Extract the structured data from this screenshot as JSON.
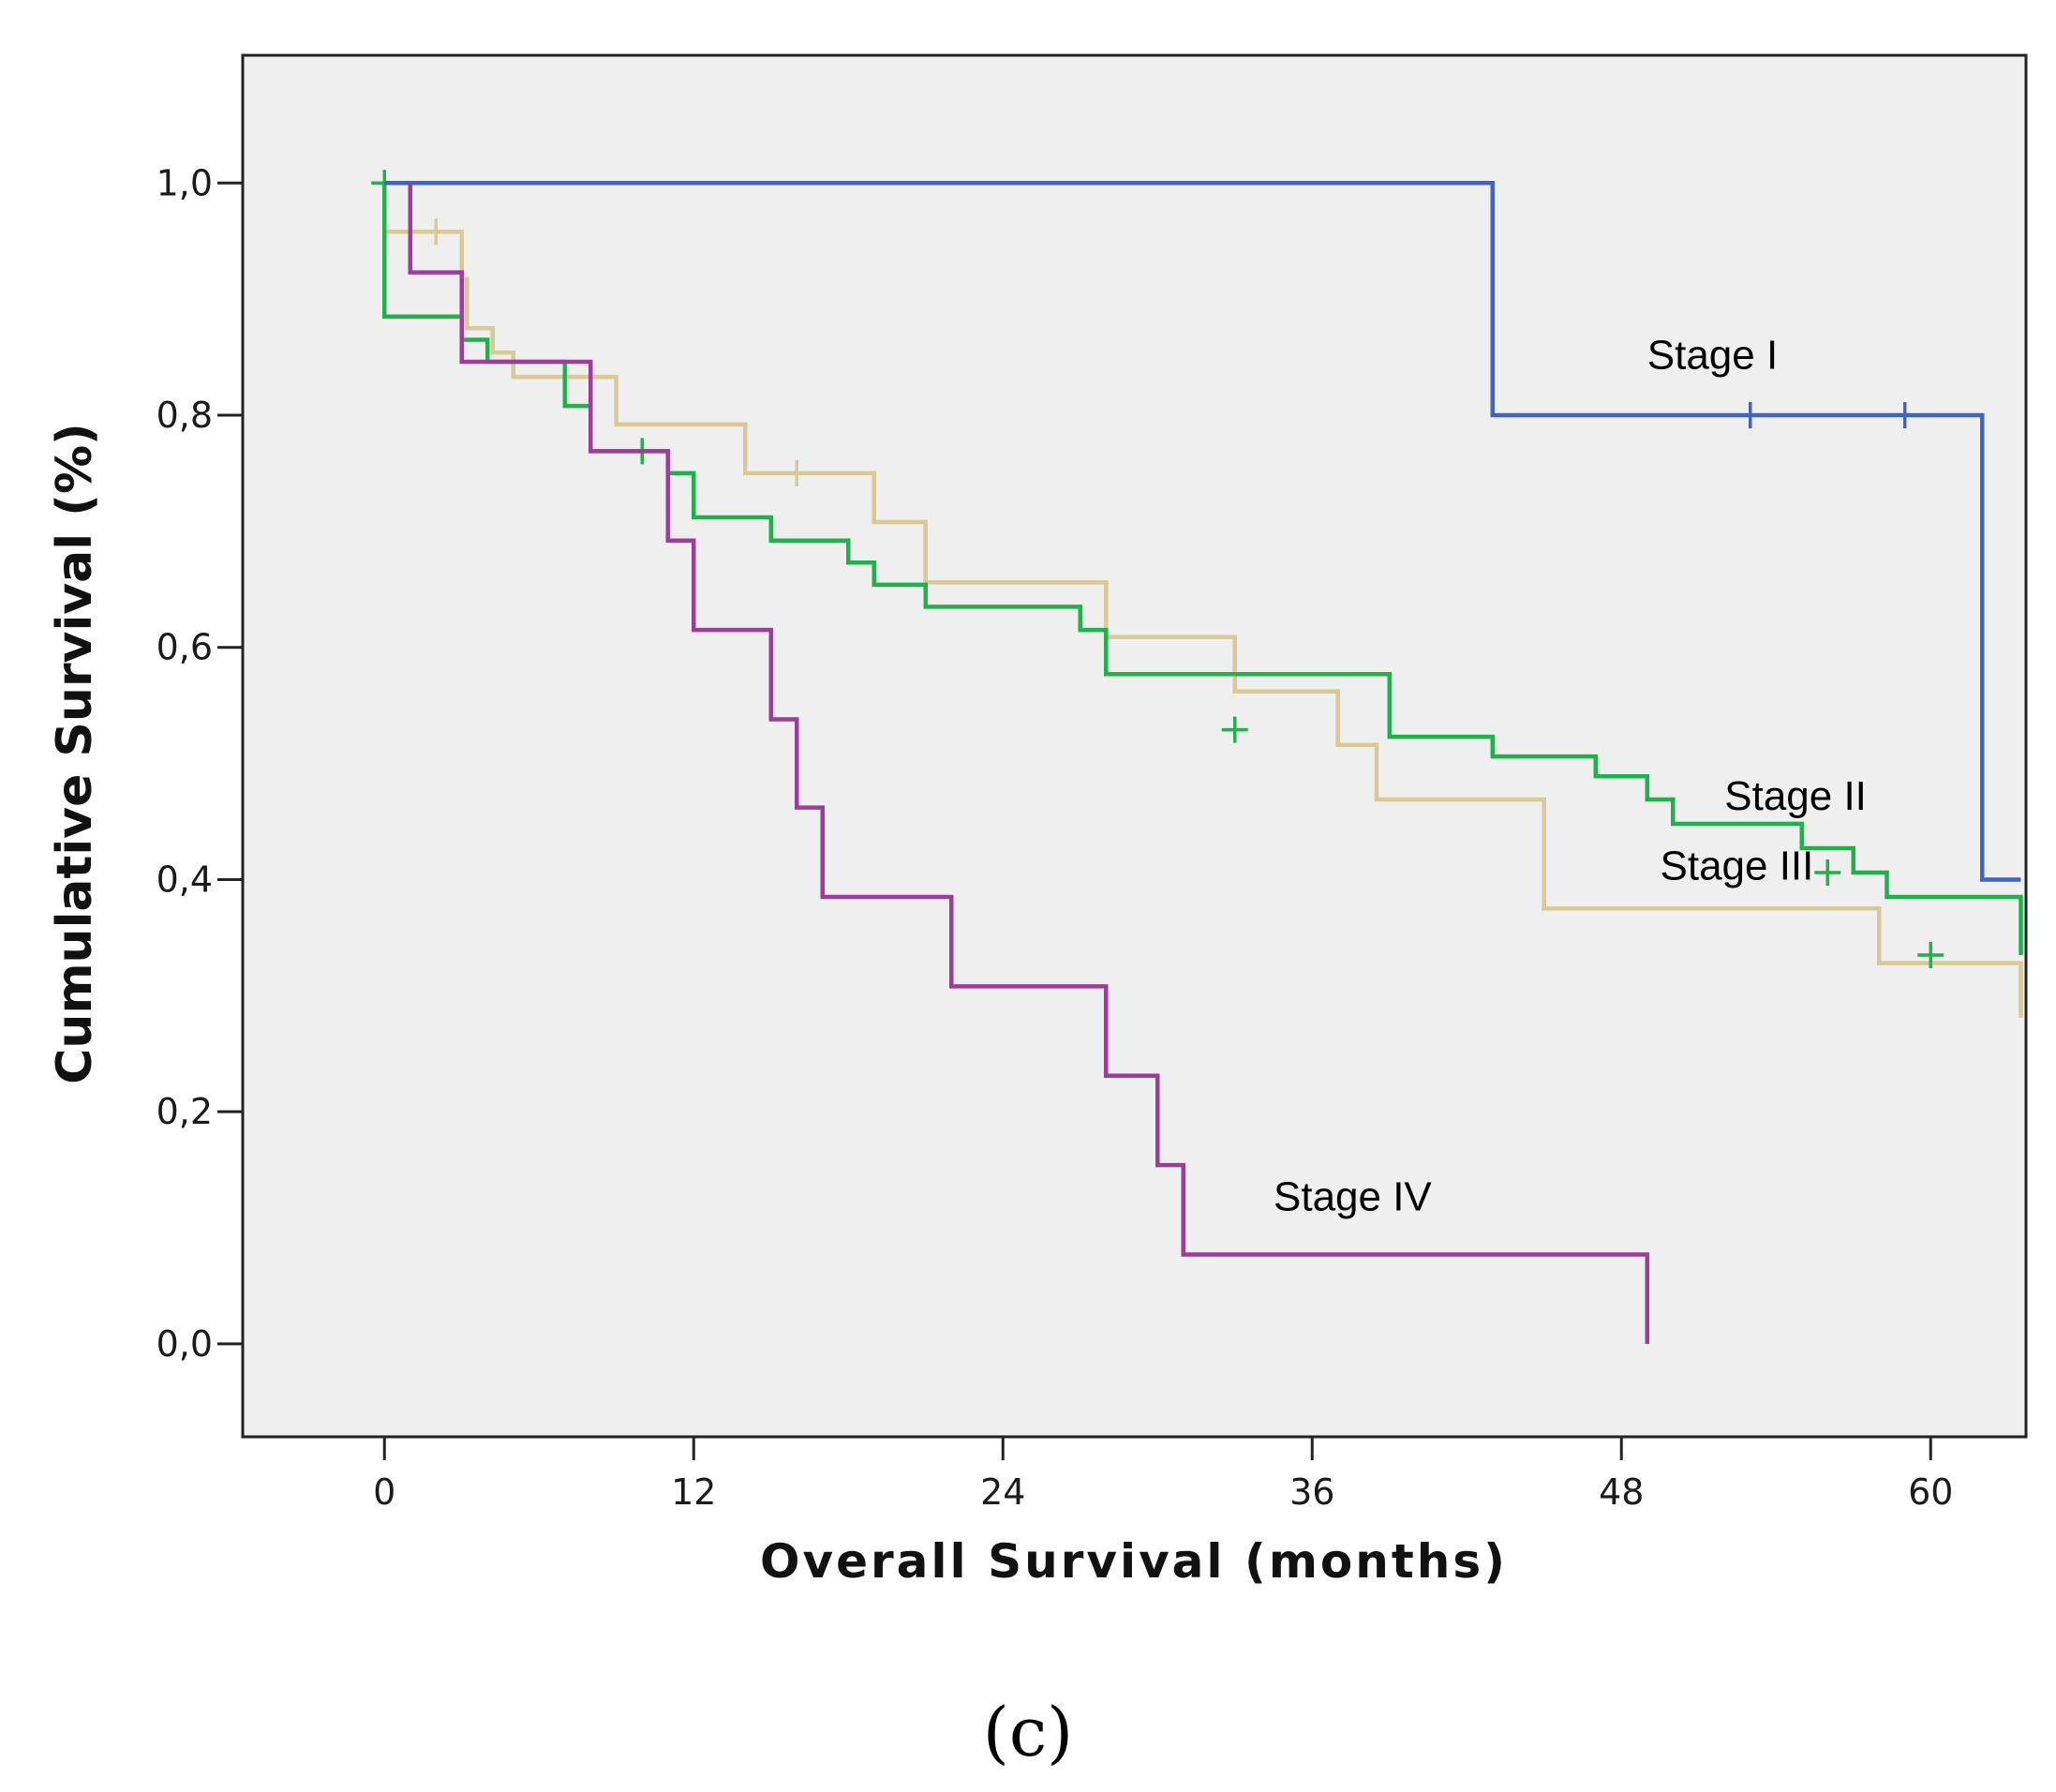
{
  "chart_data": {
    "type": "line",
    "subtype": "kaplan-meier step",
    "xlabel": "Overall Survival (months)",
    "ylabel": "Cumulative Survival (%)",
    "xlim": [
      -5.5,
      63.7
    ],
    "ylim": [
      -0.08,
      1.11
    ],
    "x_ticks": [
      {
        "value": 0,
        "label": "0"
      },
      {
        "value": 12,
        "label": "12"
      },
      {
        "value": 24,
        "label": "24"
      },
      {
        "value": 36,
        "label": "36"
      },
      {
        "value": 48,
        "label": "48"
      },
      {
        "value": 60,
        "label": "60"
      }
    ],
    "y_ticks": [
      {
        "value": 0.0,
        "label": "0,0"
      },
      {
        "value": 0.2,
        "label": "0,2"
      },
      {
        "value": 0.4,
        "label": "0,4"
      },
      {
        "value": 0.6,
        "label": "0,6"
      },
      {
        "value": 0.8,
        "label": "0,8"
      },
      {
        "value": 1.0,
        "label": "1,0"
      }
    ],
    "panel_label": "(c)",
    "series": [
      {
        "name": "Stage III",
        "label": "Stage III",
        "color": "#d8c995",
        "x": [
          0,
          0,
          3,
          3.2,
          4.2,
          5,
          9,
          14,
          19,
          21,
          28,
          33,
          37,
          38.5,
          45,
          58,
          63.5
        ],
        "y": [
          1.0,
          0.958,
          0.917,
          0.875,
          0.854,
          0.833,
          0.792,
          0.75,
          0.708,
          0.656,
          0.609,
          0.562,
          0.516,
          0.469,
          0.375,
          0.328,
          0.281
        ],
        "censored": [
          [
            2,
            0.958
          ],
          [
            16,
            0.75
          ]
        ],
        "label_at": [
          49.5,
          0.4
        ]
      },
      {
        "name": "Stage II",
        "label": "Stage II",
        "color": "#21b04b",
        "x": [
          0,
          0,
          3,
          4,
          7,
          8,
          11,
          12,
          15,
          18,
          19,
          21,
          27,
          28,
          39,
          43,
          47,
          49,
          50,
          55,
          57,
          58.3,
          63.5
        ],
        "y": [
          1.0,
          0.885,
          0.865,
          0.846,
          0.808,
          0.769,
          0.75,
          0.712,
          0.692,
          0.673,
          0.654,
          0.635,
          0.615,
          0.577,
          0.523,
          0.506,
          0.489,
          0.469,
          0.448,
          0.427,
          0.406,
          0.385,
          0.335
        ],
        "censored": [
          [
            0,
            1.0
          ],
          [
            10,
            0.769
          ],
          [
            33,
            0.529
          ],
          [
            56,
            0.406
          ],
          [
            60,
            0.335
          ]
        ],
        "label_at": [
          52,
          0.46
        ]
      },
      {
        "name": "Stage I",
        "label": "Stage I",
        "color": "#3f65c0",
        "x": [
          0,
          43,
          62,
          63.5
        ],
        "y": [
          1.0,
          0.8,
          0.4,
          0.4
        ],
        "censored": [
          [
            53,
            0.8
          ],
          [
            59,
            0.8
          ]
        ],
        "label_at": [
          49,
          0.84
        ]
      },
      {
        "name": "Stage IV",
        "label": "Stage IV",
        "color": "#9c3d9c",
        "x": [
          1,
          1,
          3,
          8,
          11,
          12,
          15,
          16,
          17,
          22,
          28,
          30,
          31,
          49,
          49
        ],
        "y": [
          1.0,
          0.923,
          0.846,
          0.769,
          0.692,
          0.615,
          0.538,
          0.462,
          0.385,
          0.308,
          0.231,
          0.154,
          0.077,
          0.077,
          0.0
        ],
        "censored": [],
        "label_at": [
          34.5,
          0.115
        ]
      }
    ]
  }
}
